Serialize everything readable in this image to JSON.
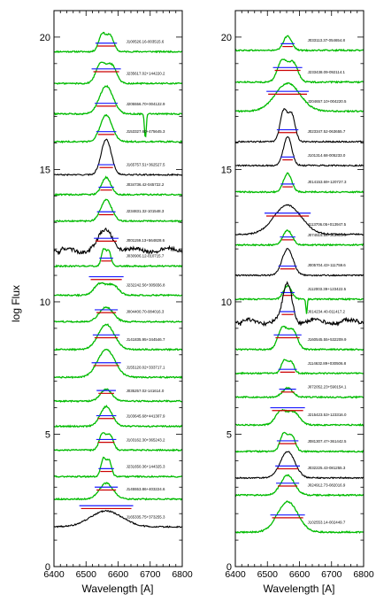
{
  "chart_data": {
    "type": "line",
    "ylabel": "log Flux",
    "xlabel": "Wavelength [A]",
    "xlim": [
      6400,
      6800
    ],
    "ylim": [
      0,
      21
    ],
    "x_ticks": [
      6400,
      6500,
      6600,
      6700,
      6800
    ],
    "y_ticks": [
      0,
      5,
      10,
      15,
      20
    ],
    "colors": {
      "green": "#00bb00",
      "black": "#000000",
      "blue": "#1a1aff",
      "red": "#cc0000"
    },
    "panels": [
      {
        "name": "left",
        "spectra": [
          {
            "label": "J100526.16-003515.6",
            "base": 19.45,
            "color": "green",
            "amp": 0.7,
            "width": 28,
            "shape": "double",
            "bar": 0.32,
            "note": "flat"
          },
          {
            "label": "J235617.02+144220.2",
            "base": 18.25,
            "color": "green",
            "amp": 0.8,
            "width": 38,
            "shape": "double",
            "bar": 0.55,
            "note": "flat"
          },
          {
            "label": "J205556.70+004122.9",
            "base": 17.1,
            "color": "green",
            "amp": 1.05,
            "width": 30,
            "shape": "single",
            "bar": 0.4,
            "note": "dip"
          },
          {
            "label": "J153327.60+475645.3",
            "base": 16.05,
            "color": "green",
            "amp": 1.0,
            "width": 26,
            "shape": "single",
            "bar": 0.38,
            "note": "flat"
          },
          {
            "label": "J165757.51+362527.5",
            "base": 14.8,
            "color": "black",
            "amp": 1.35,
            "width": 22,
            "shape": "single",
            "bar": 0.38,
            "note": "flat"
          },
          {
            "label": "J034736.42-045722.2",
            "base": 14.05,
            "color": "green",
            "amp": 0.65,
            "width": 20,
            "shape": "single",
            "bar": 0.28,
            "note": "flat"
          },
          {
            "label": "J234831.32-101548.3",
            "base": 13.05,
            "color": "green",
            "amp": 0.8,
            "width": 24,
            "shape": "single",
            "bar": 0.35,
            "note": "flat"
          },
          {
            "label": "J001159.13+564828.6",
            "base": 11.95,
            "color": "black",
            "amp": 0.75,
            "width": 32,
            "shape": "single",
            "bar": 0.45,
            "note": "noisy"
          },
          {
            "label": "J030906.12-010715.7",
            "base": 11.35,
            "color": "green",
            "amp": 0.65,
            "width": 18,
            "shape": "double",
            "bar": 0.3,
            "note": "flat"
          },
          {
            "label": "J232242.56+305656.8",
            "base": 10.25,
            "color": "green",
            "amp": 0.45,
            "width": 45,
            "shape": "double",
            "bar": 0.7,
            "note": "flat"
          },
          {
            "label": "J004400.70-084016.3",
            "base": 9.25,
            "color": "green",
            "amp": 0.55,
            "width": 30,
            "shape": "single",
            "bar": 0.45,
            "note": "flat"
          },
          {
            "label": "J141835.95+344546.7",
            "base": 8.2,
            "color": "green",
            "amp": 0.95,
            "width": 35,
            "shape": "single",
            "bar": 0.55,
            "note": "flat"
          },
          {
            "label": "J155120.02+333717.1",
            "base": 7.15,
            "color": "green",
            "amp": 1.05,
            "width": 38,
            "shape": "single",
            "bar": 0.55,
            "note": "flat"
          },
          {
            "label": "J035257.02-141614.0",
            "base": 6.25,
            "color": "green",
            "amp": 0.45,
            "width": 25,
            "shape": "single",
            "bar": 0.4,
            "note": "flat"
          },
          {
            "label": "J103645.68+441307.9",
            "base": 5.3,
            "color": "green",
            "amp": 0.75,
            "width": 26,
            "shape": "single",
            "bar": 0.4,
            "note": "flat"
          },
          {
            "label": "J103162.30+365243.2",
            "base": 4.4,
            "color": "green",
            "amp": 0.65,
            "width": 26,
            "shape": "double",
            "bar": 0.4,
            "note": "flat"
          },
          {
            "label": "J231650.36+144325.3",
            "base": 3.4,
            "color": "green",
            "amp": 0.7,
            "width": 20,
            "shape": "double",
            "bar": 0.3,
            "note": "flat"
          },
          {
            "label": "J145553.86+403224.6",
            "base": 2.55,
            "color": "green",
            "amp": 0.6,
            "width": 30,
            "shape": "single",
            "bar": 0.45,
            "note": "flat"
          },
          {
            "label": "J165335.75+373255.3",
            "base": 1.5,
            "color": "black",
            "amp": 0.6,
            "width": 70,
            "shape": "single",
            "bar": 0.8,
            "note": "flat"
          }
        ]
      },
      {
        "name": "right",
        "spectra": [
          {
            "label": "J033113.37-054654.8",
            "base": 19.5,
            "color": "green",
            "amp": 0.55,
            "width": 18,
            "shape": "single",
            "bar": 0.25,
            "note": "flat"
          },
          {
            "label": "J233438.09-092114.1",
            "base": 18.3,
            "color": "green",
            "amp": 0.85,
            "width": 38,
            "shape": "double",
            "bar": 0.55,
            "note": "flat"
          },
          {
            "label": "J204657.10+004220.5",
            "base": 17.2,
            "color": "green",
            "amp": 1.05,
            "width": 55,
            "shape": "single",
            "bar": 0.75,
            "note": "flat"
          },
          {
            "label": "J023347.52-063655.7",
            "base": 16.05,
            "color": "black",
            "amp": 1.2,
            "width": 28,
            "shape": "double",
            "bar": 0.45,
            "note": "flat"
          },
          {
            "label": "J101314.68-005233.0",
            "base": 15.15,
            "color": "black",
            "amp": 1.1,
            "width": 18,
            "shape": "single",
            "bar": 0.32,
            "note": "flat"
          },
          {
            "label": "J014153.69+120727.3",
            "base": 14.15,
            "color": "green",
            "amp": 0.7,
            "width": 18,
            "shape": "single",
            "bar": 0.3,
            "note": "flat"
          },
          {
            "label": "J113706.05+013947.5",
            "base": 12.55,
            "color": "black",
            "amp": 1.1,
            "width": 60,
            "shape": "single",
            "bar": 0.8,
            "note": "flat"
          },
          {
            "label": "J074515.56+302401.0",
            "base": 12.15,
            "color": "green",
            "amp": 0.55,
            "width": 20,
            "shape": "single",
            "bar": 0.3,
            "note": "flat"
          },
          {
            "label": "J005704.43+111759.6",
            "base": 11.0,
            "color": "black",
            "amp": 1.0,
            "width": 24,
            "shape": "single",
            "bar": 0.35,
            "note": "flat"
          },
          {
            "label": "J112003.39+123422.5",
            "base": 10.1,
            "color": "green",
            "amp": 0.5,
            "width": 18,
            "shape": "single",
            "bar": 0.25,
            "note": "dip2"
          },
          {
            "label": "J014234.40-011417.2",
            "base": 9.25,
            "color": "black",
            "amp": 1.45,
            "width": 20,
            "shape": "single",
            "bar": 0.38,
            "note": "noisy"
          },
          {
            "label": "J160545.55+532209.9",
            "base": 8.2,
            "color": "green",
            "amp": 0.85,
            "width": 36,
            "shape": "double",
            "bar": 0.55,
            "note": "flat"
          },
          {
            "label": "J114632.89+030506.8",
            "base": 7.3,
            "color": "green",
            "amp": 0.5,
            "width": 24,
            "shape": "double",
            "bar": 0.15,
            "note": "flat"
          },
          {
            "label": "J072052.23+590154.1",
            "base": 6.4,
            "color": "green",
            "amp": 0.35,
            "width": 22,
            "shape": "single",
            "bar": 0.3,
            "note": "flat"
          },
          {
            "label": "J215423.53+123316.0",
            "base": 5.35,
            "color": "green",
            "amp": 0.55,
            "width": 45,
            "shape": "double",
            "bar": 0.65,
            "note": "flat"
          },
          {
            "label": "J081307.47+361442.5",
            "base": 4.35,
            "color": "green",
            "amp": 0.7,
            "width": 28,
            "shape": "double",
            "bar": 0.4,
            "note": "flat"
          },
          {
            "label": "J032225.43-081255.3",
            "base": 3.35,
            "color": "black",
            "amp": 1.0,
            "width": 32,
            "shape": "single",
            "bar": 0.45,
            "note": "flat"
          },
          {
            "label": "J024912.73-082016.9",
            "base": 2.7,
            "color": "green",
            "amp": 0.75,
            "width": 30,
            "shape": "single",
            "bar": 0.45,
            "note": "flat"
          },
          {
            "label": "J102553.14-002449.7",
            "base": 1.3,
            "color": "green",
            "amp": 1.15,
            "width": 45,
            "shape": "single",
            "bar": 0.65,
            "note": "flat"
          }
        ]
      }
    ]
  }
}
